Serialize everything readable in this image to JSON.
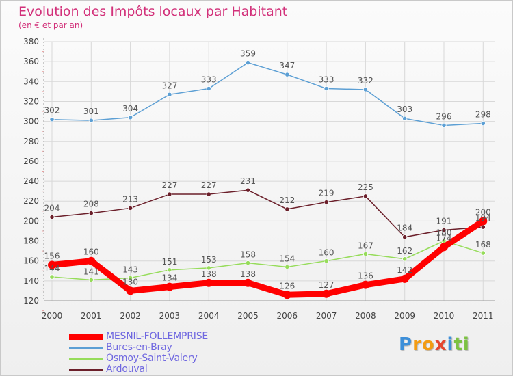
{
  "title": "Evolution des Impôts locaux par Habitant",
  "subtitle": "(en € et par an)",
  "logo": {
    "letters": [
      "P",
      "r",
      "o",
      "x",
      "i",
      "t",
      "i"
    ],
    "colors": [
      "#3d8fd9",
      "#f39c12",
      "#f39c12",
      "#e5462f",
      "#3d8fd9",
      "#7cc242",
      "#7cc242"
    ]
  },
  "chart_data": {
    "type": "line",
    "x": [
      "2000",
      "2001",
      "2002",
      "2003",
      "2004",
      "2005",
      "2006",
      "2007",
      "2008",
      "2009",
      "2010",
      "2011"
    ],
    "ylim": [
      120,
      380
    ],
    "yticks": [
      120,
      140,
      160,
      180,
      200,
      220,
      240,
      260,
      280,
      300,
      320,
      340,
      360,
      380
    ],
    "grid": true,
    "legend_position": "bottom-left",
    "series": [
      {
        "name": "MESNIL-FOLLEMPRISE",
        "color": "#ff0000",
        "values": [
          156,
          160,
          130,
          134,
          138,
          138,
          126,
          127,
          136,
          142,
          174,
          200
        ],
        "labels": [
          "156",
          "160",
          "130",
          "134",
          "138",
          "138",
          "126",
          "127",
          "136",
          "142",
          "174",
          "200"
        ]
      },
      {
        "name": "Bures-en-Bray",
        "color": "#5c9fd4",
        "values": [
          302,
          301,
          304,
          327,
          333,
          359,
          347,
          333,
          332,
          303,
          296,
          298
        ],
        "labels": [
          "302",
          "301",
          "304",
          "327",
          "333",
          "359",
          "347",
          "333",
          "332",
          "303",
          "296",
          "298"
        ]
      },
      {
        "name": "Osmoy-Saint-Valery",
        "color": "#96dc5a",
        "values": [
          144,
          141,
          143,
          151,
          153,
          158,
          154,
          160,
          167,
          162,
          180,
          168
        ],
        "labels": [
          "144",
          "141",
          "143",
          "151",
          "153",
          "158",
          "154",
          "160",
          "167",
          "162",
          "180",
          "168"
        ]
      },
      {
        "name": "Ardouval",
        "color": "#6b1f2a",
        "values": [
          204,
          208,
          213,
          227,
          227,
          231,
          212,
          219,
          225,
          184,
          191,
          194
        ],
        "labels": [
          "204",
          "208",
          "213",
          "227",
          "227",
          "231",
          "212",
          "219",
          "225",
          "184",
          "191",
          "194"
        ]
      }
    ]
  }
}
